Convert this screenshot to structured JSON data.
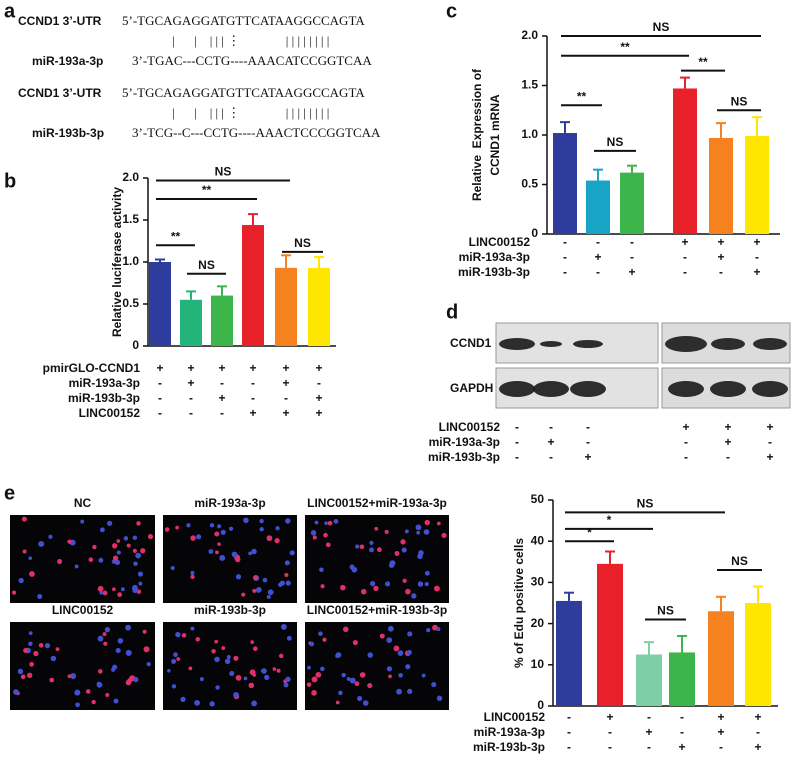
{
  "panels": {
    "a": {
      "letter": "a",
      "groups": [
        {
          "utr_label": "CCND1 3’-UTR",
          "utr_seq": "5’-TGCAGAGGATGTTCATAAGGCCAGTA",
          "pairing": "|      |    | | | ⋮              | | | | | | | |",
          "mir_label": "miR-193a-3p",
          "mir_seq": "3’-TGAC---CCTG----AAACATCCGGTCAA"
        },
        {
          "utr_label": "CCND1 3’-UTR",
          "utr_seq": "5’-TGCAGAGGATGTTCATAAGGCCAGTA",
          "pairing": "|      |    | | | ⋮              | | | | | | | |",
          "mir_label": "miR-193b-3p",
          "mir_seq": "3’-TCG--C---CCTG----AAACTCCCGGTCAA"
        }
      ]
    },
    "d": {
      "letter": "d",
      "blots": [
        "CCND1",
        "GAPDH"
      ],
      "conditions": [
        {
          "name": "LINC00152",
          "signs": [
            "-",
            "-",
            "-",
            "+",
            "+",
            "+"
          ]
        },
        {
          "name": "miR-193a-3p",
          "signs": [
            "-",
            "+",
            "-",
            "-",
            "+",
            "-"
          ]
        },
        {
          "name": "miR-193b-3p",
          "signs": [
            "-",
            "-",
            "+",
            "-",
            "-",
            "+"
          ]
        }
      ]
    },
    "e": {
      "letter": "e",
      "images": [
        "NC",
        "miR-193a-3p",
        "LINC00152+miR-193a-3p",
        "LINC00152",
        "miR-193b-3p",
        "LINC00152+miR-193b-3p"
      ]
    }
  },
  "chart_data": [
    {
      "type": "bar",
      "panel": "b",
      "ylabel": [
        "Relative luciferase activity"
      ],
      "values": [
        1.0,
        0.55,
        0.6,
        1.44,
        0.93,
        0.93
      ],
      "errors": [
        0.03,
        0.1,
        0.11,
        0.13,
        0.15,
        0.13
      ],
      "colors": [
        "#2e3c9e",
        "#22b47a",
        "#3cb54a",
        "#e8202a",
        "#f5821f",
        "#ffe600"
      ],
      "ylim": [
        0,
        2
      ],
      "yticks": [
        0,
        0.5,
        {
          "value": 1,
          "label": "1.0"
        },
        1.5,
        {
          "value": 2,
          "label": "2.0"
        }
      ],
      "conditions": [
        {
          "name": "pmirGLO-CCND1",
          "signs": [
            "+",
            "+",
            "+",
            "+",
            "+",
            "+"
          ]
        },
        {
          "name": "miR-193a-3p",
          "signs": [
            "-",
            "+",
            "-",
            "-",
            "+",
            "-"
          ]
        },
        {
          "name": "miR-193b-3p",
          "signs": [
            "-",
            "-",
            "+",
            "-",
            "-",
            "+"
          ]
        },
        {
          "name": "LINC00152",
          "signs": [
            "-",
            "-",
            "-",
            "+",
            "+",
            "+"
          ]
        }
      ],
      "annotations": [
        {
          "text": "**",
          "span": [
            0,
            1
          ],
          "y": 1.2
        },
        {
          "text": "NS",
          "span": [
            1,
            2
          ],
          "y": 0.86
        },
        {
          "text": "**",
          "span": [
            0,
            3
          ],
          "y": 1.75
        },
        {
          "text": "NS",
          "span": [
            0,
            4
          ],
          "y": 1.97
        },
        {
          "text": "NS",
          "span": [
            4,
            5
          ],
          "y": 1.12
        }
      ]
    },
    {
      "type": "bar",
      "panel": "c",
      "ylabel": [
        "Relative  Expression of",
        "CCND1 mRNA"
      ],
      "values": [
        1.02,
        0.54,
        0.62,
        1.47,
        0.97,
        0.99
      ],
      "errors": [
        0.11,
        0.11,
        0.07,
        0.11,
        0.15,
        0.19
      ],
      "colors": [
        "#2e3c9e",
        "#18a4c4",
        "#3cb54a",
        "#e8202a",
        "#f5821f",
        "#ffe600"
      ],
      "ylim": [
        0,
        2
      ],
      "yticks": [
        0,
        0.5,
        {
          "value": 1,
          "label": "1.0"
        },
        1.5,
        {
          "value": 2,
          "label": "2.0"
        }
      ],
      "conditions": [
        {
          "name": "LINC00152",
          "signs": [
            "-",
            "-",
            "-",
            "+",
            "+",
            "+"
          ]
        },
        {
          "name": "miR-193a-3p",
          "signs": [
            "-",
            "+",
            "-",
            "-",
            "+",
            "-"
          ]
        },
        {
          "name": "miR-193b-3p",
          "signs": [
            "-",
            "-",
            "+",
            "-",
            "-",
            "+"
          ]
        }
      ],
      "annotations": [
        {
          "text": "**",
          "span": [
            0,
            1
          ],
          "y": 1.3
        },
        {
          "text": "NS",
          "span": [
            1,
            2
          ],
          "y": 0.84
        },
        {
          "text": "**",
          "span": [
            0,
            3
          ],
          "y": 1.8
        },
        {
          "text": "**",
          "span": [
            3,
            4
          ],
          "y": 1.65
        },
        {
          "text": "NS",
          "span": [
            4,
            5
          ],
          "y": 1.25
        },
        {
          "text": "NS",
          "span": [
            0,
            5
          ],
          "y": 2.0
        }
      ]
    },
    {
      "type": "bar",
      "panel": "e",
      "ylabel": [
        "% of Edu positive cells"
      ],
      "values": [
        25.5,
        34.5,
        12.5,
        13,
        23,
        25
      ],
      "errors": [
        2,
        3,
        3,
        4,
        3.5,
        4
      ],
      "colors": [
        "#2e3c9e",
        "#e8202a",
        "#7fcfa6",
        "#3cb54a",
        "#f5821f",
        "#ffe600"
      ],
      "ylim": [
        0,
        50
      ],
      "yticks": [
        0,
        10,
        20,
        30,
        40,
        50
      ],
      "conditions": [
        {
          "name": "LINC00152",
          "signs": [
            "-",
            "+",
            "-",
            "-",
            "+",
            "+"
          ]
        },
        {
          "name": "miR-193a-3p",
          "signs": [
            "-",
            "-",
            "+",
            "-",
            "+",
            "-"
          ]
        },
        {
          "name": "miR-193b-3p",
          "signs": [
            "-",
            "-",
            "-",
            "+",
            "-",
            "+"
          ]
        }
      ],
      "annotations": [
        {
          "text": "*",
          "span": [
            0,
            1
          ],
          "y": 40
        },
        {
          "text": "*",
          "span": [
            0,
            2
          ],
          "y": 43
        },
        {
          "text": "NS",
          "span": [
            0,
            4
          ],
          "y": 47
        },
        {
          "text": "NS",
          "span": [
            2,
            3
          ],
          "y": 21
        },
        {
          "text": "NS",
          "span": [
            4,
            5
          ],
          "y": 33
        }
      ]
    }
  ]
}
